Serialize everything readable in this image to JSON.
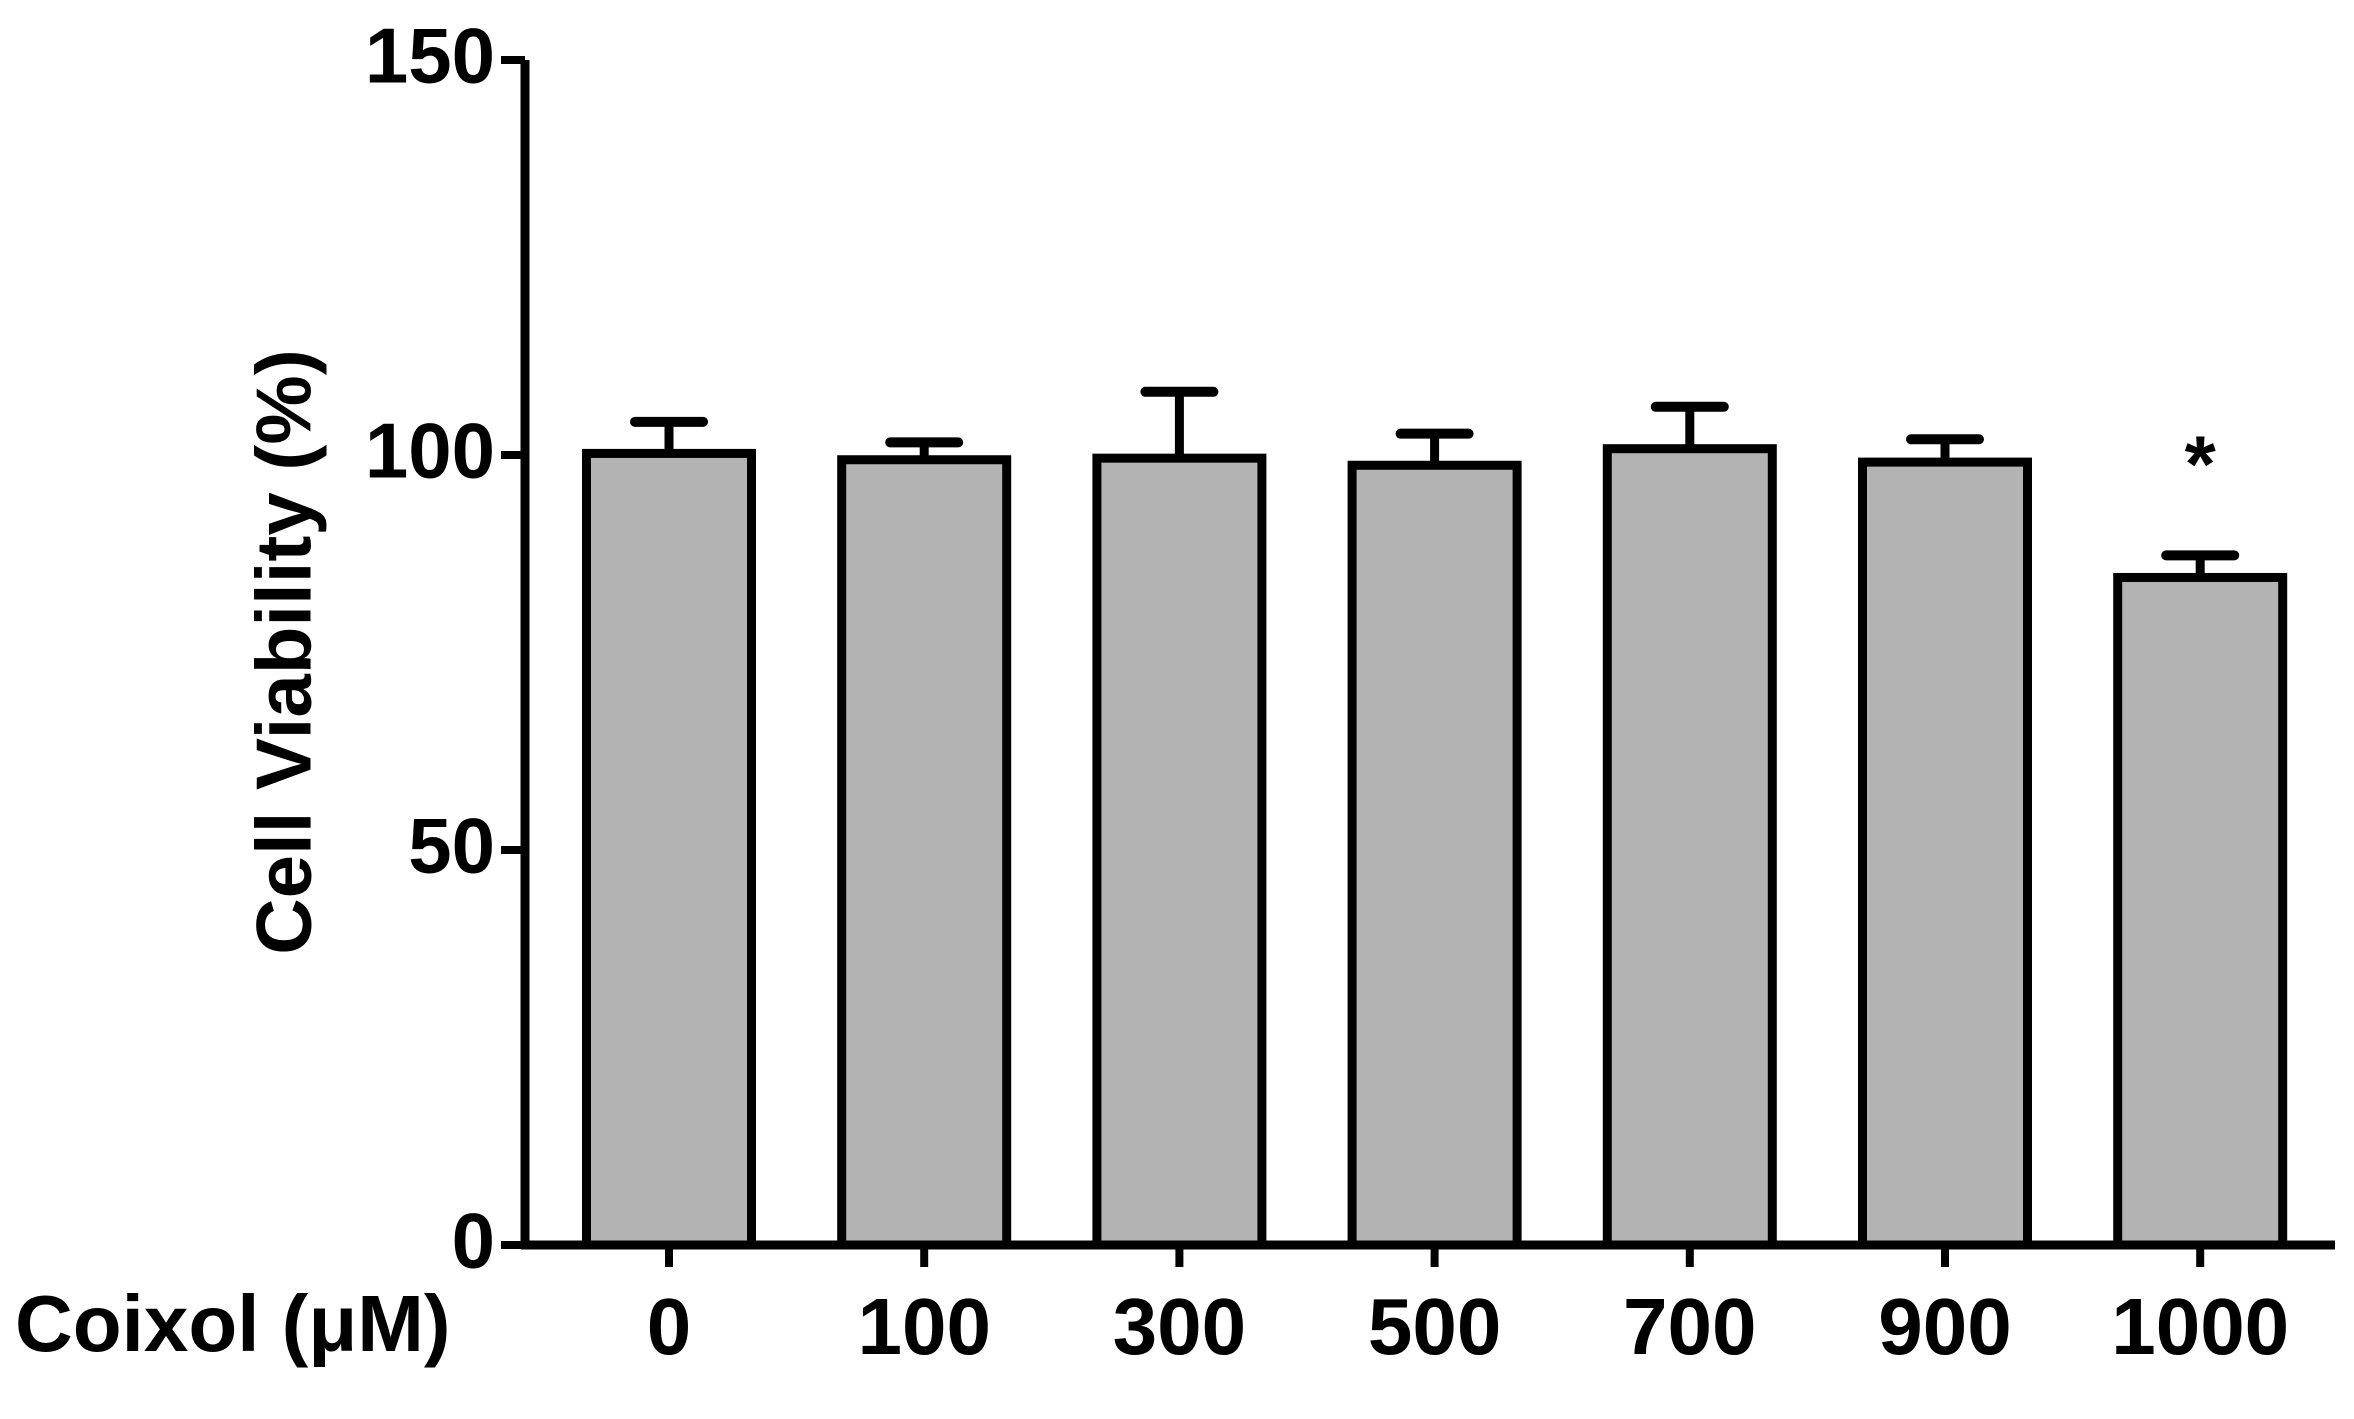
{
  "chart_data": {
    "type": "bar",
    "x_label": "Coixol (μM)",
    "y_label": "Cell Viability (%)",
    "categories": [
      "0",
      "100",
      "300",
      "500",
      "700",
      "900",
      "1000"
    ],
    "values": [
      100.2,
      99.4,
      99.6,
      98.7,
      100.8,
      99.1,
      84.5
    ],
    "errors": [
      4,
      2.2,
      8.4,
      4,
      5.3,
      2.9,
      2.8
    ],
    "significance": [
      null,
      null,
      null,
      null,
      null,
      null,
      "*"
    ],
    "color": "#b3b3b3",
    "ylim": [
      0,
      150
    ],
    "yticks": [
      0,
      50,
      100,
      150
    ],
    "grid": false
  }
}
